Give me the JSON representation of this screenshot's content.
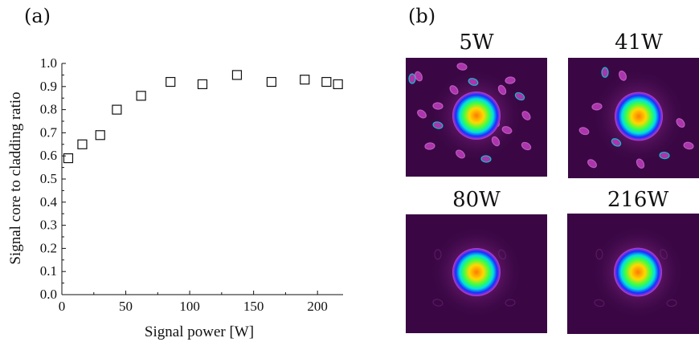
{
  "panel_a_label": "(a)",
  "panel_b_label": "(b)",
  "chart_data": {
    "type": "scatter",
    "xlabel": "Signal power [W]",
    "ylabel": "Signal core to cladding ratio",
    "xlim": [
      0,
      220
    ],
    "ylim": [
      0.0,
      1.0
    ],
    "xticks": [
      0,
      50,
      100,
      150,
      200
    ],
    "yticks": [
      0.0,
      0.1,
      0.2,
      0.3,
      0.4,
      0.5,
      0.6,
      0.7,
      0.8,
      0.9,
      1.0
    ],
    "ytick_labels": [
      "0.0",
      "0.1",
      "0.2",
      "0.3",
      "0.4",
      "0.5",
      "0.6",
      "0.7",
      "0.8",
      "0.9",
      "1.0"
    ],
    "marker": "open-square",
    "points": [
      {
        "x": 5,
        "y": 0.59
      },
      {
        "x": 16,
        "y": 0.65
      },
      {
        "x": 30,
        "y": 0.69
      },
      {
        "x": 43,
        "y": 0.8
      },
      {
        "x": 62,
        "y": 0.86
      },
      {
        "x": 85,
        "y": 0.92
      },
      {
        "x": 110,
        "y": 0.91
      },
      {
        "x": 137,
        "y": 0.95
      },
      {
        "x": 164,
        "y": 0.92
      },
      {
        "x": 190,
        "y": 0.93
      },
      {
        "x": 207,
        "y": 0.92
      },
      {
        "x": 216,
        "y": 0.91
      }
    ]
  },
  "beam_profiles": [
    {
      "label": "5W",
      "modes": "many"
    },
    {
      "label": "41W",
      "modes": "few"
    },
    {
      "label": "80W",
      "modes": "none"
    },
    {
      "label": "216W",
      "modes": "none"
    }
  ],
  "colors": {
    "background": "#3a0744",
    "halo": "#c03cc0",
    "core_blue": "#1a2cff",
    "core_cyan": "#00e0e0",
    "core_green": "#40ff40",
    "core_yellow": "#ffd800",
    "core_orange": "#ff7a00"
  }
}
